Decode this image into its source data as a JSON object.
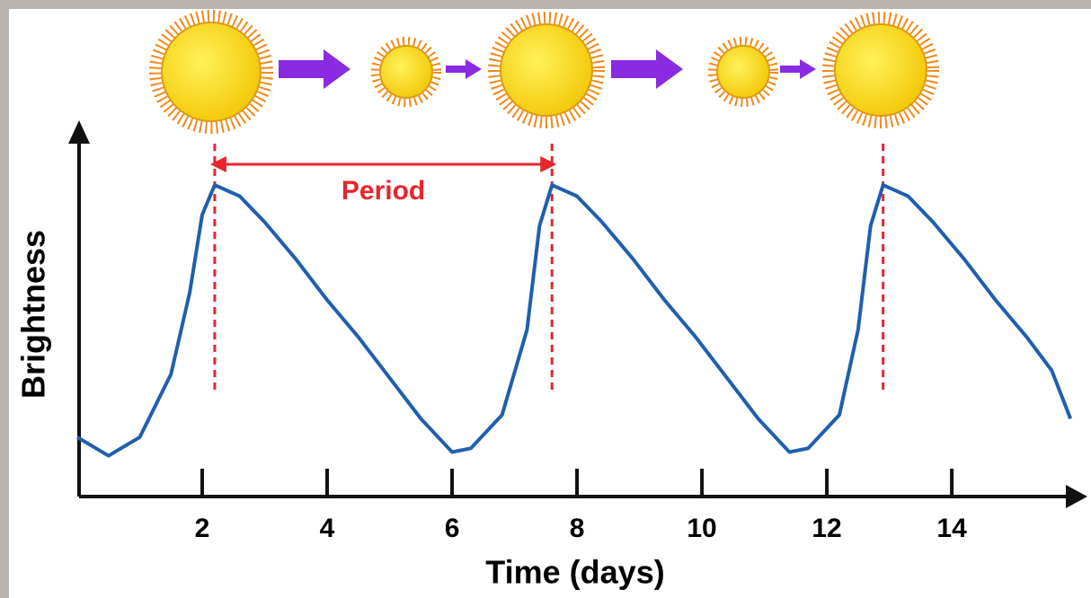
{
  "chart_data": {
    "type": "line",
    "x_label": "Time (days)",
    "y_label": "Brightness",
    "annotation": "Period",
    "annotation_range": [
      2.2,
      7.6
    ],
    "peak_markers": [
      2.2,
      7.6,
      12.9
    ],
    "x": [
      0,
      0.5,
      1.0,
      1.5,
      1.8,
      2.0,
      2.2,
      2.6,
      3.0,
      3.5,
      4.0,
      4.5,
      5.0,
      5.5,
      6.0,
      6.3,
      6.8,
      7.2,
      7.4,
      7.6,
      8.0,
      8.4,
      8.9,
      9.4,
      9.9,
      10.4,
      10.9,
      11.4,
      11.7,
      12.2,
      12.5,
      12.7,
      12.9,
      13.3,
      13.7,
      14.2,
      14.7,
      15.2,
      15.6,
      15.9
    ],
    "series": [
      {
        "name": "Brightness",
        "color": "#1f5fad",
        "values": [
          1.6,
          1.1,
          1.6,
          3.3,
          5.5,
          7.6,
          8.4,
          8.1,
          7.4,
          6.4,
          5.3,
          4.3,
          3.2,
          2.1,
          1.2,
          1.3,
          2.2,
          4.5,
          7.3,
          8.4,
          8.1,
          7.4,
          6.4,
          5.3,
          4.3,
          3.2,
          2.1,
          1.2,
          1.3,
          2.2,
          4.5,
          7.3,
          8.4,
          8.1,
          7.4,
          6.4,
          5.3,
          4.3,
          3.4,
          2.1
        ]
      }
    ],
    "xlim": [
      0,
      16.2
    ],
    "ylim": [
      0,
      10
    ],
    "xticks": [
      2,
      4,
      6,
      8,
      10,
      12,
      14
    ]
  }
}
